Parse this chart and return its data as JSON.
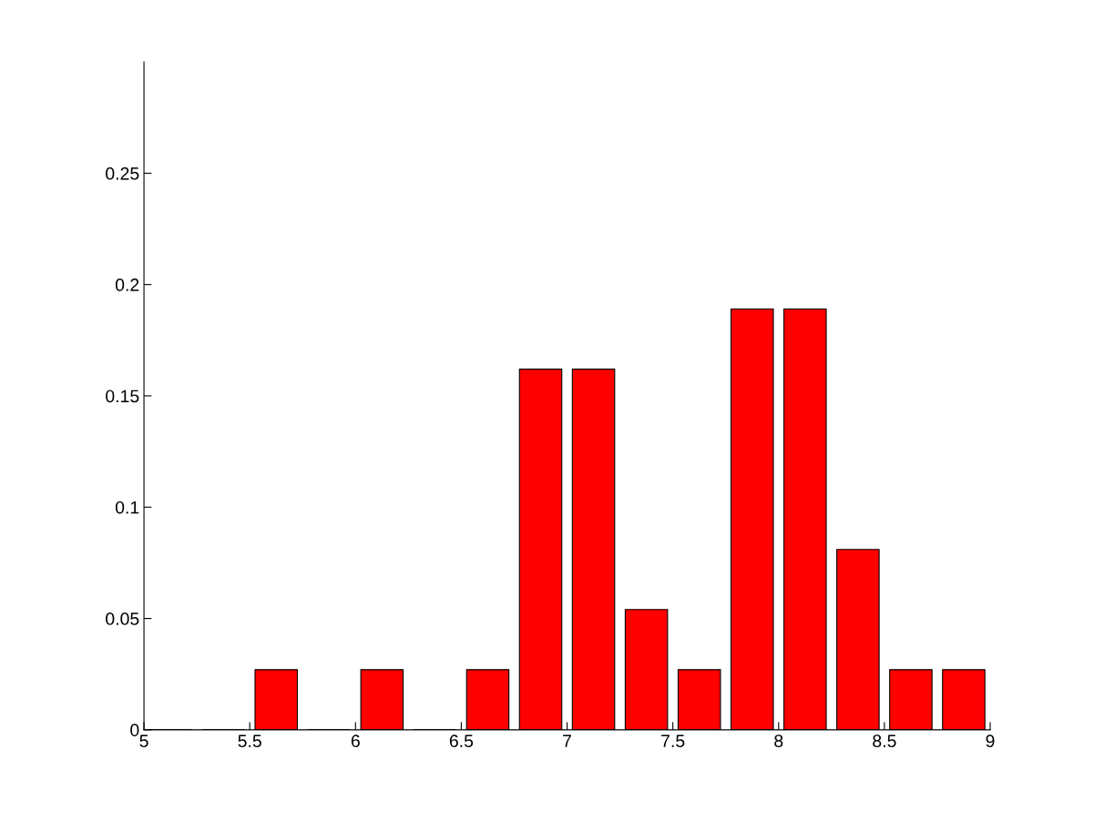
{
  "chart_data": {
    "type": "histogram",
    "bins": [
      5,
      5.25,
      5.5,
      5.75,
      6,
      6.25,
      6.5,
      6.75,
      7,
      7.25,
      7.5,
      7.75,
      8,
      8.25,
      8.5,
      8.75,
      9
    ],
    "values": [
      0,
      0,
      0.027,
      0,
      0.027,
      0,
      0.027,
      0.162,
      0.162,
      0.054,
      0.027,
      0.189,
      0.189,
      0.081,
      0.027,
      0.027
    ],
    "color": "#ff0000",
    "xlim": [
      5,
      9
    ],
    "xticks": [
      5,
      5.5,
      6,
      6.5,
      7,
      7.5,
      8,
      8.5,
      9
    ],
    "ylim": [
      0,
      0.3
    ],
    "yticks": [
      0,
      0.05,
      0.1,
      0.15,
      0.2,
      0.25
    ],
    "grid": false,
    "legend": false
  }
}
